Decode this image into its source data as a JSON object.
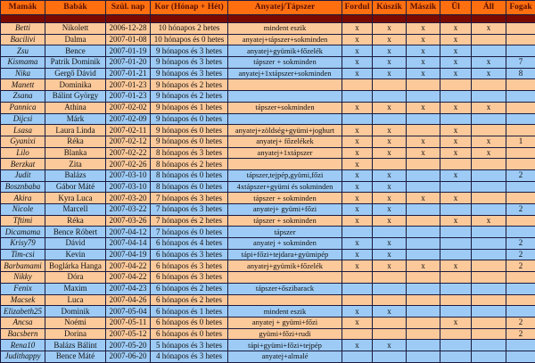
{
  "colors": {
    "header": "#ff6f10",
    "band": "#7a0a00",
    "peach": "#fcc99a",
    "blue": "#9dcbf5"
  },
  "headers": [
    "Mamák",
    "Babák",
    "Szül. nap",
    "Kor (Hónap + Hét)",
    "Anyatej/Tápszer",
    "Fordul",
    "Kúszik",
    "Mászik",
    "Ül",
    "Áll",
    "Fogak"
  ],
  "rows": [
    {
      "color": "peach",
      "cells": [
        "Betti",
        "Nikolett",
        "2006-12-28",
        "10 hónapos 2 hetes",
        "mindent eszik",
        "x",
        "x",
        "x",
        "x",
        "x",
        ""
      ]
    },
    {
      "color": "peach",
      "cells": [
        "Bacilivi",
        "Dalma",
        "2007-01-08",
        "10 hónapos és 0 hetes",
        "anyatej+tápszer+sokminden",
        "x",
        "x",
        "x",
        "x",
        "",
        ""
      ]
    },
    {
      "color": "blue",
      "cells": [
        "Zsu",
        "Bence",
        "2007-01-19",
        "9 hónapos és 3 hetes",
        "anyatej+gyümik+főzelék",
        "x",
        "x",
        "x",
        "x",
        "",
        ""
      ]
    },
    {
      "color": "blue",
      "cells": [
        "Kismama",
        "Patrik Dominik",
        "2007-01-20",
        "9 hónapos és 3 hetes",
        "tápszer + sokminden",
        "x",
        "x",
        "x",
        "x",
        "x",
        "7"
      ]
    },
    {
      "color": "blue",
      "cells": [
        "Nika",
        "Gergő Dávid",
        "2007-01-21",
        "9 hónapos és 3 hetes",
        "anyatej+1xtápszer+sokminden",
        "x",
        "x",
        "x",
        "x",
        "x",
        "8"
      ]
    },
    {
      "color": "peach",
      "cells": [
        "Manett",
        "Dominika",
        "2007-01-23",
        "9 hónapos és 2 hetes",
        "",
        "",
        "",
        "",
        "",
        "",
        ""
      ]
    },
    {
      "color": "blue",
      "cells": [
        "Zsana",
        "Bálint György",
        "2007-01-23",
        "9 hónapos és 2 hetes",
        "",
        "",
        "",
        "",
        "",
        "",
        ""
      ]
    },
    {
      "color": "peach",
      "cells": [
        "Pannica",
        "Athina",
        "2007-02-02",
        "9 hónapos és 1 hetes",
        "tápszer+sokminden",
        "x",
        "x",
        "x",
        "x",
        "x",
        ""
      ]
    },
    {
      "color": "blue",
      "cells": [
        "Dijcsi",
        "Márk",
        "2007-02-09",
        "9 hónapos és 0 hetes",
        "",
        "",
        "",
        "",
        "",
        "",
        ""
      ]
    },
    {
      "color": "peach",
      "cells": [
        "Lsasa",
        "Laura Linda",
        "2007-02-11",
        "9 hónapos és 0 hetes",
        "anyatej+zöldség+gyümi+joghurt",
        "x",
        "x",
        "",
        "x",
        "",
        ""
      ]
    },
    {
      "color": "peach",
      "cells": [
        "Gyanixi",
        "Réka",
        "2007-02-12",
        "9 hónapos és 0 hetes",
        "anyatej+ főzelékek",
        "x",
        "x",
        "x",
        "x",
        "x",
        "1"
      ]
    },
    {
      "color": "peach",
      "cells": [
        "Lilo",
        "Blanka",
        "2007-02-22",
        "8 hónapos és 3 hetes",
        "anyatej+1xtápszer",
        "x",
        "x",
        "x",
        "x",
        "x",
        ""
      ]
    },
    {
      "color": "peach",
      "cells": [
        "Berzkat",
        "Zita",
        "2007-02-26",
        "8 hónapos és 2 hetes",
        "",
        "x",
        "",
        "",
        "",
        "",
        ""
      ]
    },
    {
      "color": "blue",
      "cells": [
        "Judit",
        "Balázs",
        "2007-03-10",
        "8 hónapos és 0 hetes",
        "tápszer,tejpép,gyümi,főzi",
        "x",
        "x",
        "",
        "x",
        "",
        "2"
      ]
    },
    {
      "color": "blue",
      "cells": [
        "Bosznbaba",
        "Gábor Máté",
        "2007-03-10",
        "8 hónapos és 0 hetes",
        "4xtápszer+gyümi és sokminden",
        "x",
        "x",
        "",
        "",
        "",
        ""
      ]
    },
    {
      "color": "peach",
      "cells": [
        "Akira",
        "Kyra Luca",
        "2007-03-20",
        "7 hónapos és 3 hetes",
        "tápszer + sokminden",
        "x",
        "x",
        "x",
        "x",
        "",
        ""
      ]
    },
    {
      "color": "blue",
      "cells": [
        "Nicole",
        "Marcell",
        "2007-03-22",
        "7 hónapos és 3 hetes",
        "anyatej+ gyümi+főzi",
        "x",
        "x",
        "",
        "",
        "",
        "2"
      ]
    },
    {
      "color": "peach",
      "cells": [
        "Tftimi",
        "Réka",
        "2007-03-26",
        "7 hónapos és 2 hetes",
        "tápszer + sokminden",
        "x",
        "x",
        "",
        "x",
        "x",
        ""
      ]
    },
    {
      "color": "blue",
      "cells": [
        "Dicamama",
        "Bence Róbert",
        "2007-04-12",
        "7 hónapos és 0 hetes",
        "tápszer",
        "",
        "",
        "",
        "",
        "",
        ""
      ]
    },
    {
      "color": "blue",
      "cells": [
        "Krisy79",
        "Dávid",
        "2007-04-14",
        "6 hónapos és 4 hetes",
        "anyatej + sokminden",
        "x",
        "x",
        "",
        "",
        "",
        "2"
      ]
    },
    {
      "color": "blue",
      "cells": [
        "Tim-csi",
        "Kevin",
        "2007-04-19",
        "6 hónapos és 3 hetes",
        "tápi+főzi+tejdara+gyümipép",
        "x",
        "x",
        "",
        "",
        "",
        "2"
      ]
    },
    {
      "color": "peach",
      "cells": [
        "Barbamami",
        "Boglárka Hanga",
        "2007-04-22",
        "6 hónapos és 3 hetes",
        "anyatej+gyümik+főzelék",
        "x",
        "x",
        "x",
        "x",
        "",
        "2"
      ]
    },
    {
      "color": "peach",
      "cells": [
        "Nikky",
        "Dóra",
        "2007-04-22",
        "6 hónapos és 3 hetes",
        "",
        "",
        "",
        "",
        "",
        "",
        ""
      ]
    },
    {
      "color": "blue",
      "cells": [
        "Fenix",
        "Maxim",
        "2007-04-23",
        "6 hónapos és 2 hetes",
        "tápszer+őszibarack",
        "",
        "",
        "",
        "",
        "",
        ""
      ]
    },
    {
      "color": "peach",
      "cells": [
        "Macsek",
        "Luca",
        "2007-04-26",
        "6 hónapos és 2 hetes",
        "",
        "",
        "",
        "",
        "",
        "",
        ""
      ]
    },
    {
      "color": "blue",
      "cells": [
        "Elizabeth25",
        "Dominik",
        "2007-05-04",
        "6 hónapos és 1 hetes",
        "mindent eszik",
        "x",
        "x",
        "",
        "",
        "",
        ""
      ]
    },
    {
      "color": "peach",
      "cells": [
        "Ancsa",
        "Noémi",
        "2007-05-11",
        "6 hónapos és 0 hetes",
        "anyatej + gyümi+főzi",
        "x",
        "",
        "",
        "x",
        "",
        "2"
      ]
    },
    {
      "color": "peach",
      "cells": [
        "Bacsbern",
        "Dorina",
        "2007-05-12",
        "6 hónapos és 0 hetes",
        "gyümi+főzi+rudi",
        "",
        "",
        "",
        "",
        "",
        "2"
      ]
    },
    {
      "color": "blue",
      "cells": [
        "Rena10",
        "Balázs Bálint",
        "2007-05-20",
        "5 hónapos és 3 hetes",
        "tápi+gyümi+főzi+tejpép",
        "x",
        "x",
        "",
        "",
        "",
        ""
      ]
    },
    {
      "color": "blue",
      "cells": [
        "Judithappy",
        "Bence Máté",
        "2007-06-20",
        "4 hónapos és 3 hetes",
        "anyatej+almalé",
        "",
        "",
        "",
        "",
        "",
        ""
      ]
    }
  ]
}
